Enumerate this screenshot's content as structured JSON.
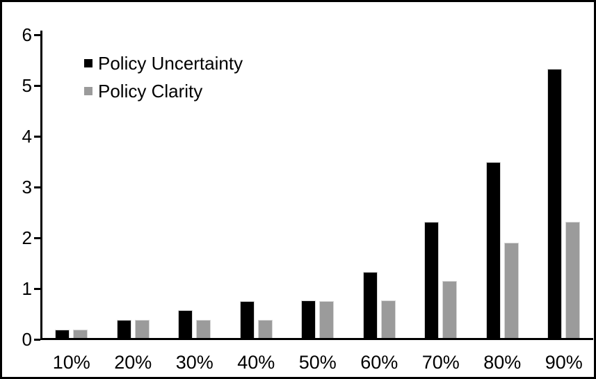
{
  "figure": {
    "background_color": "#ffffff",
    "frame_color": "#000000",
    "bar_outline_color": "#d6d6d6"
  },
  "legend": {
    "items": [
      {
        "label": "Policy Uncertainty",
        "color": "#000000"
      },
      {
        "label": "Policy Clarity",
        "color": "#9b9b9b"
      }
    ]
  },
  "chart_data": {
    "type": "bar",
    "title": "",
    "xlabel": "",
    "ylabel": "",
    "categories": [
      "10%",
      "20%",
      "30%",
      "40%",
      "50%",
      "60%",
      "70%",
      "80%",
      "90%"
    ],
    "series": [
      {
        "name": "Policy Uncertainty",
        "color": "#000000",
        "values": [
          0.19,
          0.38,
          0.57,
          0.76,
          0.77,
          1.33,
          2.31,
          3.5,
          5.33
        ]
      },
      {
        "name": "Policy Clarity",
        "color": "#9b9b9b",
        "values": [
          0.19,
          0.38,
          0.38,
          0.38,
          0.76,
          0.77,
          1.15,
          1.9,
          2.31
        ]
      }
    ],
    "ylim": [
      0,
      6
    ],
    "yticks": [
      0,
      1,
      2,
      3,
      4,
      5,
      6
    ],
    "grid": false,
    "legend_position": "upper-left-inside"
  }
}
